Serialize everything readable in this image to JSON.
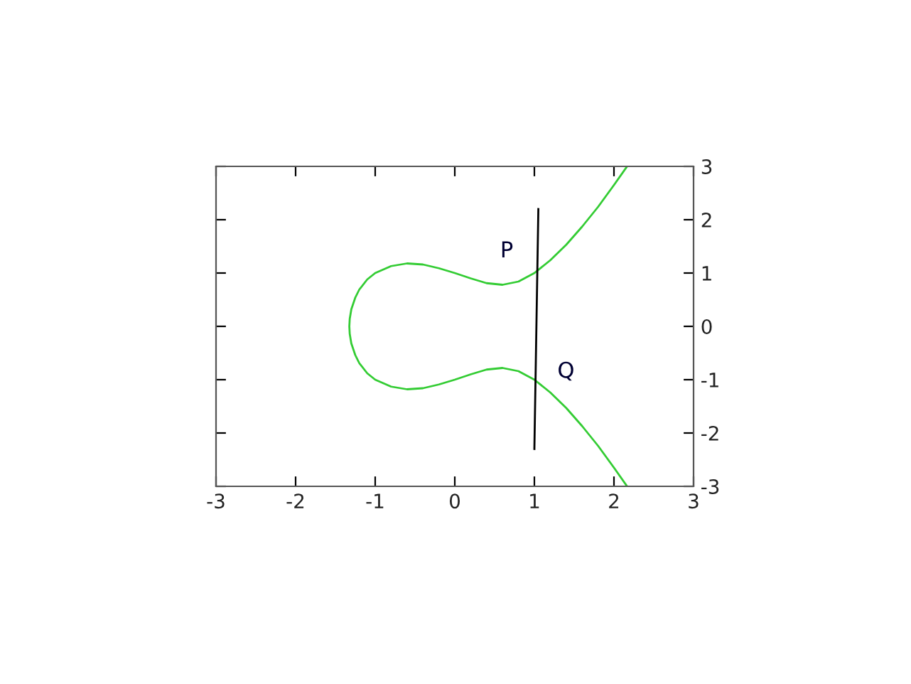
{
  "chart_data": {
    "type": "line",
    "xlim": [
      -3,
      3
    ],
    "ylim": [
      -3,
      3
    ],
    "xticks": [
      -3,
      -2,
      -1,
      0,
      1,
      2,
      3
    ],
    "yticks": [
      -3,
      -2,
      -1,
      0,
      1,
      2,
      3
    ],
    "grid": false,
    "legend": false,
    "series": [
      {
        "color": "#33cc33",
        "x": [
          2.16,
          2.0,
          1.8,
          1.6,
          1.4,
          1.2,
          1.0,
          0.8,
          0.6,
          0.4,
          0.2,
          0,
          -0.2,
          -0.4,
          -0.6,
          -0.8,
          -1.0,
          -1.1,
          -1.2,
          -1.25,
          -1.3,
          -1.32,
          -1.325,
          -1.32,
          -1.3,
          -1.25,
          -1.2,
          -1.1,
          -1.0,
          -0.8,
          -0.6,
          -0.4,
          -0.2,
          0,
          0.2,
          0.4,
          0.6,
          0.8,
          1.0,
          1.2,
          1.4,
          1.6,
          1.8,
          2.0,
          2.16
        ],
        "values": [
          -2.99,
          -2.65,
          -2.24,
          -1.87,
          -1.53,
          -1.24,
          -1.0,
          -0.84,
          -0.78,
          -0.81,
          -0.9,
          -1.0,
          -1.09,
          -1.16,
          -1.18,
          -1.13,
          -1.0,
          -0.88,
          -0.69,
          -0.54,
          -0.32,
          -0.14,
          0,
          0.14,
          0.32,
          0.54,
          0.69,
          0.88,
          1.0,
          1.13,
          1.18,
          1.16,
          1.09,
          1.0,
          0.9,
          0.81,
          0.78,
          0.84,
          1.0,
          1.24,
          1.53,
          1.87,
          2.24,
          2.65,
          2.99
        ]
      },
      {
        "color": "#000000",
        "x": [
          1.05,
          1.0
        ],
        "values": [
          2.2,
          -2.3
        ]
      }
    ],
    "annotations": [
      {
        "text": "P",
        "x": 1.0,
        "y": 1.0
      },
      {
        "text": "Q",
        "x": 1.0,
        "y": -1.0
      }
    ]
  }
}
